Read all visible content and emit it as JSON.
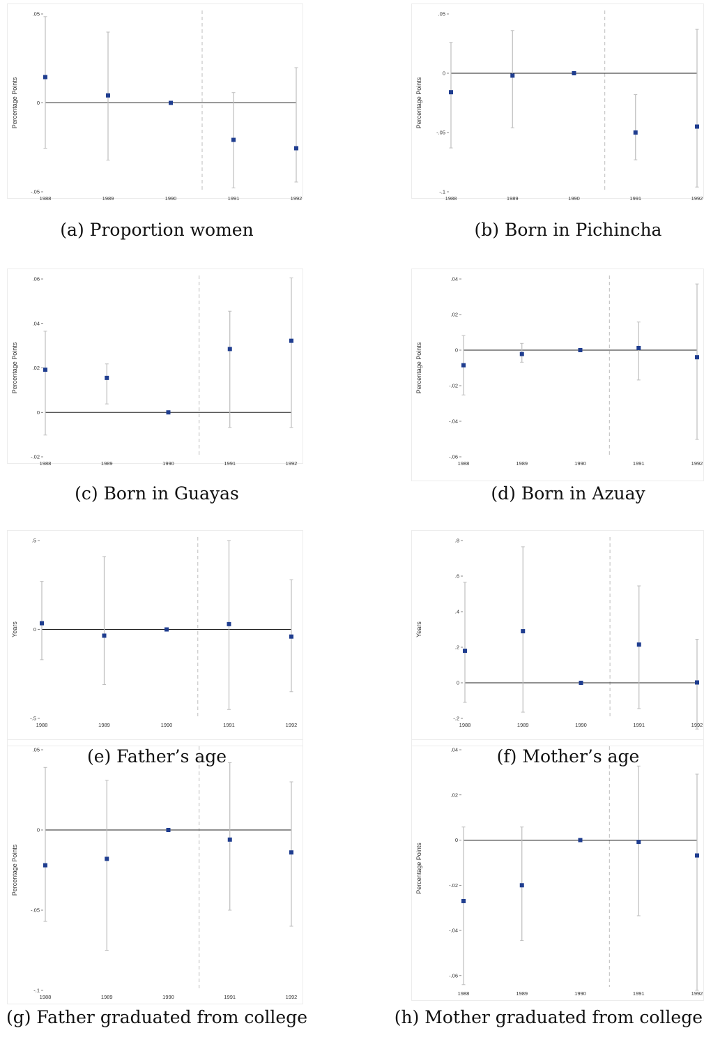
{
  "chart_data": [
    {
      "type": "scatter",
      "caption": "(a) Proportion women",
      "ylabel": "Percentage Points",
      "categories": [
        "1988",
        "1989",
        "1990",
        "1991",
        "1992"
      ],
      "yticks": [
        0.05,
        0,
        -0.05
      ],
      "ytick_labels": [
        ".05",
        "0",
        "-.05"
      ],
      "ylim": [
        -0.05,
        0.05
      ],
      "values": [
        0.0145,
        0.0042,
        0.0,
        -0.0208,
        -0.0255
      ],
      "ci_low": [
        -0.0255,
        -0.0322,
        null,
        -0.0478,
        -0.0445
      ],
      "ci_high": [
        0.0485,
        0.0398,
        null,
        0.0058,
        0.0198
      ],
      "cutoff_between": [
        "1990",
        "1991"
      ]
    },
    {
      "type": "scatter",
      "caption": "(b) Born in Pichincha",
      "ylabel": "Percentage Points",
      "categories": [
        "1988",
        "1989",
        "1990",
        "1991",
        "1992"
      ],
      "yticks": [
        0.05,
        0,
        -0.05,
        -0.1
      ],
      "ytick_labels": [
        ".05",
        "0",
        "-.05",
        "-.1"
      ],
      "ylim": [
        -0.1,
        0.05
      ],
      "values": [
        -0.016,
        -0.002,
        0.0,
        -0.05,
        -0.045
      ],
      "ci_low": [
        -0.063,
        -0.046,
        null,
        -0.073,
        -0.096
      ],
      "ci_high": [
        0.026,
        0.036,
        null,
        -0.018,
        0.037
      ],
      "cutoff_between": [
        "1990",
        "1991"
      ]
    },
    {
      "type": "scatter",
      "caption": "(c) Born in Guayas",
      "ylabel": "Percentage Points",
      "categories": [
        "1988",
        "1989",
        "1990",
        "1991",
        "1992"
      ],
      "yticks": [
        0.06,
        0.04,
        0.02,
        0,
        -0.02
      ],
      "ytick_labels": [
        ".06",
        ".04",
        ".02",
        "0",
        "-.02"
      ],
      "ylim": [
        -0.02,
        0.06
      ],
      "values": [
        0.0192,
        0.0155,
        0.0,
        0.0285,
        0.0322
      ],
      "ci_low": [
        -0.0102,
        0.0038,
        null,
        -0.0068,
        -0.0068
      ],
      "ci_high": [
        0.0365,
        0.0218,
        null,
        0.0455,
        0.0605
      ],
      "cutoff_between": [
        "1990",
        "1991"
      ]
    },
    {
      "type": "scatter",
      "caption": "(d) Born in Azuay",
      "ylabel": "Percentage Points",
      "categories": [
        "1988",
        "1989",
        "1990",
        "1991",
        "1992"
      ],
      "yticks": [
        0.04,
        0.02,
        0,
        -0.02,
        -0.04,
        -0.06
      ],
      "ytick_labels": [
        ".04",
        ".02",
        "0",
        "-.02",
        "-.04",
        "-.06"
      ],
      "ylim": [
        -0.06,
        0.04
      ],
      "values": [
        -0.0085,
        -0.0022,
        0.0,
        0.0012,
        -0.004
      ],
      "ci_low": [
        -0.0252,
        -0.0068,
        null,
        -0.0168,
        -0.0502
      ],
      "ci_high": [
        0.0082,
        0.0038,
        null,
        0.0158,
        0.0372
      ],
      "cutoff_between": [
        "1990",
        "1991"
      ]
    },
    {
      "type": "scatter",
      "caption": "(e) Father’s age",
      "ylabel": "Years",
      "categories": [
        "1988",
        "1989",
        "1990",
        "1991",
        "1992"
      ],
      "yticks": [
        0.5,
        0,
        -0.5
      ],
      "ytick_labels": [
        ".5",
        "0",
        "-.5"
      ],
      "ylim": [
        -0.5,
        0.5
      ],
      "values": [
        0.035,
        -0.035,
        0.0,
        0.03,
        -0.04
      ],
      "ci_low": [
        -0.17,
        -0.31,
        null,
        -0.45,
        -0.35
      ],
      "ci_high": [
        0.27,
        0.41,
        null,
        0.5,
        0.28
      ],
      "cutoff_between": [
        "1990",
        "1991"
      ]
    },
    {
      "type": "scatter",
      "caption": "(f) Mother’s age",
      "ylabel": "Years",
      "categories": [
        "1988",
        "1989",
        "1990",
        "1991",
        "1992"
      ],
      "yticks": [
        0.8,
        0.6,
        0.4,
        0.2,
        0,
        -0.2
      ],
      "ytick_labels": [
        ".8",
        ".6",
        ".4",
        ".2",
        "0",
        "-.2"
      ],
      "ylim": [
        -0.2,
        0.8
      ],
      "values": [
        0.18,
        0.29,
        0.0,
        0.215,
        0.002
      ],
      "ci_low": [
        -0.11,
        -0.165,
        null,
        -0.145,
        -0.26
      ],
      "ci_high": [
        0.565,
        0.765,
        null,
        0.545,
        0.245
      ],
      "cutoff_between": [
        "1990",
        "1991"
      ]
    },
    {
      "type": "scatter",
      "caption": "(g) Father graduated from college",
      "ylabel": "Percentage Points",
      "categories": [
        "1988",
        "1989",
        "1990",
        "1991",
        "1992"
      ],
      "yticks": [
        0.05,
        0,
        -0.05,
        -0.1
      ],
      "ytick_labels": [
        ".05",
        "0",
        "-.05",
        "-.1"
      ],
      "ylim": [
        -0.1,
        0.05
      ],
      "values": [
        -0.022,
        -0.018,
        0.0,
        -0.006,
        -0.014
      ],
      "ci_low": [
        -0.057,
        -0.075,
        null,
        -0.05,
        -0.06
      ],
      "ci_high": [
        0.039,
        0.031,
        null,
        0.042,
        0.03
      ],
      "cutoff_between": [
        "1990",
        "1991"
      ]
    },
    {
      "type": "scatter",
      "caption": "(h) Mother graduated from college",
      "ylabel": "Percentage Points",
      "categories": [
        "1988",
        "1989",
        "1990",
        "1991",
        "1992"
      ],
      "yticks": [
        0.04,
        0.02,
        0,
        -0.02,
        -0.04,
        -0.06
      ],
      "ytick_labels": [
        ".04",
        ".02",
        "0",
        "-.02",
        "-.04",
        "-.06"
      ],
      "ylim": [
        -0.065,
        0.04
      ],
      "values": [
        -0.027,
        -0.02,
        0.0,
        -0.0008,
        -0.0068
      ],
      "ci_low": [
        -0.064,
        -0.0445,
        null,
        -0.0335,
        -0.0665
      ],
      "ci_high": [
        0.0058,
        0.0058,
        null,
        0.0328,
        0.0292
      ],
      "cutoff_between": [
        "1990",
        "1991"
      ]
    }
  ],
  "colors": {
    "marker": "#1f3d8f",
    "ci": "#bdbdbd",
    "zero_line": "#222222",
    "cutoff_line": "#c8c8c8",
    "frame": "#ececec"
  }
}
